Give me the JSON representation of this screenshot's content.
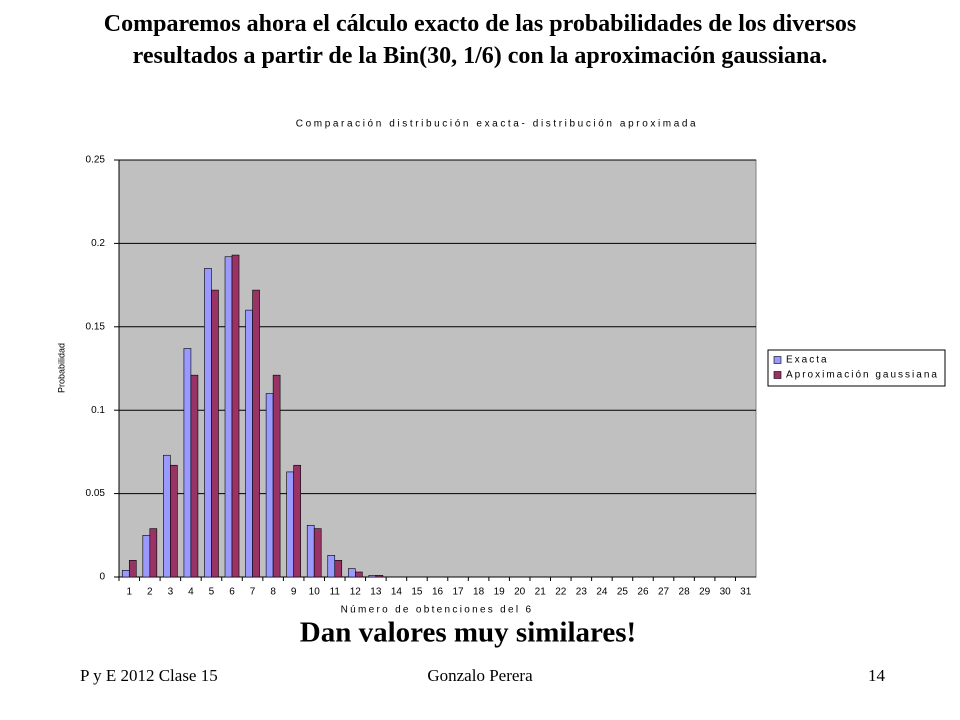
{
  "slide_title": "Comparemos ahora el cálculo exacto de las probabilidades de los diversos resultados a partir de la Bin(30, 1/6) con la aproximación gaussiana.",
  "chart_data": {
    "type": "bar",
    "title": "Comparación distribución exacta- distribución aproximada",
    "x_label": "Número de obtenciones del 6",
    "y_label": "Probabilidad",
    "categories": [
      "1",
      "2",
      "3",
      "4",
      "5",
      "6",
      "7",
      "8",
      "9",
      "10",
      "11",
      "12",
      "13",
      "14",
      "15",
      "16",
      "17",
      "18",
      "19",
      "20",
      "21",
      "22",
      "23",
      "24",
      "25",
      "26",
      "27",
      "28",
      "29",
      "30",
      "31"
    ],
    "series": [
      {
        "name": "Exacta",
        "color": "#9999ff",
        "values": [
          0.004,
          0.025,
          0.073,
          0.137,
          0.185,
          0.192,
          0.16,
          0.11,
          0.063,
          0.031,
          0.013,
          0.005,
          0.001,
          0,
          0,
          0,
          0,
          0,
          0,
          0,
          0,
          0,
          0,
          0,
          0,
          0,
          0,
          0,
          0,
          0,
          0
        ]
      },
      {
        "name": "Aproximación gaussiana",
        "color": "#993366",
        "values": [
          0.01,
          0.029,
          0.067,
          0.121,
          0.172,
          0.193,
          0.172,
          0.121,
          0.067,
          0.029,
          0.01,
          0.003,
          0.001,
          0,
          0,
          0,
          0,
          0,
          0,
          0,
          0,
          0,
          0,
          0,
          0,
          0,
          0,
          0,
          0,
          0,
          0
        ]
      }
    ],
    "ylim": [
      0,
      0.25
    ],
    "yticks": [
      0,
      0.05,
      0.1,
      0.15,
      0.2,
      0.25
    ],
    "grid": true,
    "legend": "right"
  },
  "conclusion": "Dan valores muy similares!",
  "footer": {
    "left": "P y E 2012 Clase 15",
    "center": "Gonzalo Perera",
    "right": "14"
  }
}
